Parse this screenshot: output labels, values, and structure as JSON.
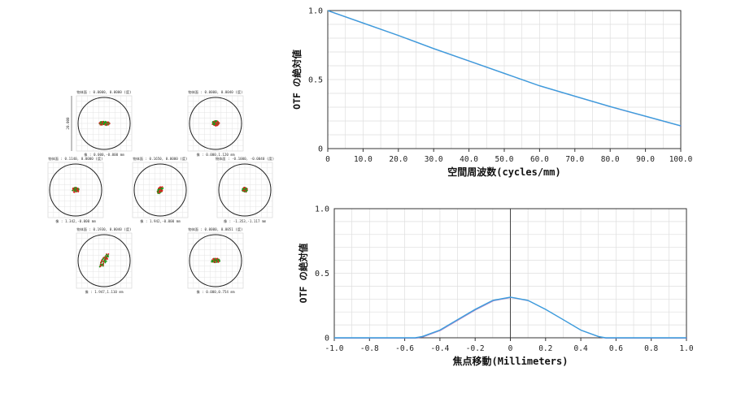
{
  "spot_diagrams": {
    "cells": [
      {
        "header": "物体面 : 0.0000, 0.0000 (度)",
        "footer": "像 : 0.000,-0.000 mm",
        "scale_label": "20.000",
        "spread": [
          0.22,
          0.08
        ],
        "angle": 0
      },
      {
        "header": "物体面 : 0.0000, 0.0040 (度)",
        "footer": "像 : 0.000,1.120 mm",
        "spread": [
          0.14,
          0.1
        ],
        "angle": 0
      },
      {
        "header": "物体面 : 0.1140, 0.0000 (度)",
        "footer": "像 : 1.342,-0.000 mm",
        "spread": [
          0.14,
          0.1
        ],
        "angle": 0
      },
      {
        "header": "物体面 : 0.1650, 0.0000 (度)",
        "footer": "像 : 1.942,-0.000 mm",
        "spread": [
          0.16,
          0.09
        ],
        "angle": -55
      },
      {
        "header": "物体面 : -0.1000, -0.0040 (度)",
        "footer": "像 : -1.353,-1.117 mm",
        "spread": [
          0.1,
          0.1
        ],
        "angle": 0
      },
      {
        "header": "物体面 : 0.1930, 0.0040 (度)",
        "footer": "像 : 1.947,1.110 mm",
        "spread": [
          0.32,
          0.09
        ],
        "angle": -60
      },
      {
        "header": "物体面 : 0.0000, 0.0051 (度)",
        "footer": "像 : 0.000,0.754 mm",
        "spread": [
          0.18,
          0.09
        ],
        "angle": 0
      }
    ],
    "dot_colors": [
      "#1a9e1a",
      "#e02020"
    ]
  },
  "chart_data": [
    {
      "type": "line",
      "xlabel": "空間周波数(cycles/mm)",
      "ylabel": "OTF の絶対値",
      "xlim": [
        0,
        100
      ],
      "ylim": [
        0,
        1
      ],
      "x_ticks": [
        "0",
        "10.0",
        "20.0",
        "30.0",
        "40.0",
        "50.0",
        "60.0",
        "70.0",
        "80.0",
        "90.0",
        "100.0"
      ],
      "y_ticks": [
        "0",
        "0.5",
        "1.0"
      ],
      "grid": true,
      "x": [
        0,
        10,
        20,
        30,
        40,
        50,
        60,
        70,
        80,
        90,
        100
      ],
      "series": [
        {
          "values": [
            1.0,
            0.91,
            0.82,
            0.725,
            0.635,
            0.545,
            0.455,
            0.38,
            0.305,
            0.235,
            0.165
          ],
          "color": "#3b9ddd"
        }
      ]
    },
    {
      "type": "line",
      "xlabel": "焦点移動(Millimeters)",
      "ylabel": "OTF の絶対値",
      "xlim": [
        -1.0,
        1.0
      ],
      "ylim": [
        0,
        1.0
      ],
      "x_ticks": [
        "-1.0",
        "-0.8",
        "-0.6",
        "-0.4",
        "-0.2",
        "0",
        "0.2",
        "0.4",
        "0.6",
        "0.8",
        "1.0"
      ],
      "y_ticks": [
        "0",
        "0.5",
        "1.0"
      ],
      "grid": true,
      "x": [
        -1.0,
        -0.6,
        -0.54,
        -0.5,
        -0.4,
        -0.3,
        -0.2,
        -0.1,
        0,
        0.1,
        0.2,
        0.3,
        0.4,
        0.5,
        0.54,
        0.6,
        1.0
      ],
      "series": [
        {
          "values": [
            0,
            0,
            0,
            0.01,
            0.06,
            0.14,
            0.22,
            0.29,
            0.315,
            0.29,
            0.22,
            0.14,
            0.06,
            0.01,
            0,
            0,
            0
          ],
          "color": "#3b9ddd"
        }
      ]
    }
  ]
}
